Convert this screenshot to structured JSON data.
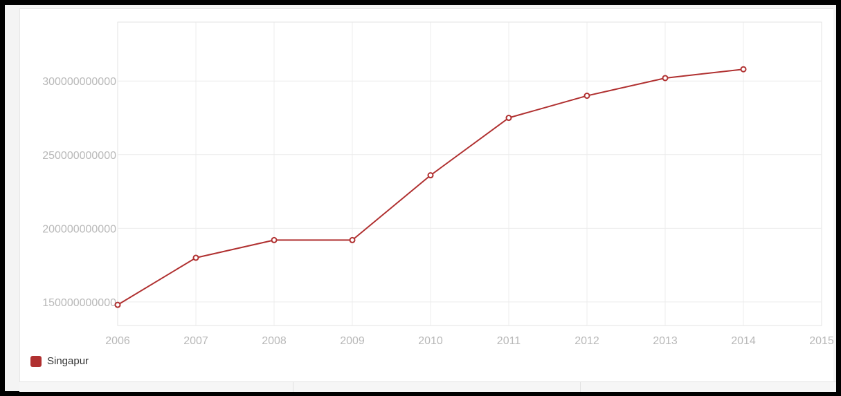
{
  "chart_data": {
    "type": "line",
    "x": [
      "2006",
      "2007",
      "2008",
      "2009",
      "2010",
      "2011",
      "2012",
      "2013",
      "2014"
    ],
    "x_ticks": [
      "2006",
      "2007",
      "2008",
      "2009",
      "2010",
      "2011",
      "2012",
      "2013",
      "2014",
      "2015"
    ],
    "y_ticks": [
      "150000000000",
      "200000000000",
      "250000000000",
      "300000000000"
    ],
    "ylim": [
      134000000000,
      340000000000
    ],
    "xlim": [
      2006,
      2015
    ],
    "grid": true,
    "legend_position": "bottom-left",
    "series": [
      {
        "name": "Singapur",
        "color": "#b03030",
        "values": [
          148000000000,
          180000000000,
          192000000000,
          192000000000,
          236000000000,
          275000000000,
          290000000000,
          302000000000,
          308000000000
        ]
      }
    ]
  }
}
